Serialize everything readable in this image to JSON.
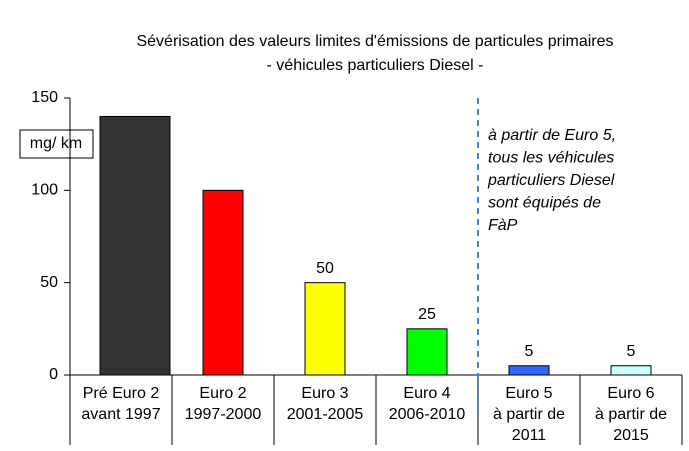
{
  "chart_data": {
    "type": "bar",
    "title": [
      "Sévérisation des valeurs limites d'émissions de particules primaires",
      "-  véhicules particuliers Diesel -"
    ],
    "y_unit": "mg/ km",
    "categories": [
      [
        "Pré Euro 2",
        "avant 1997"
      ],
      [
        "Euro 2",
        "1997-2000"
      ],
      [
        "Euro 3",
        "2001-2005"
      ],
      [
        "Euro 4",
        "2006-2010"
      ],
      [
        "Euro 5",
        "à partir de",
        "2011"
      ],
      [
        "Euro 6",
        "à partir de",
        "2015"
      ]
    ],
    "values": [
      140,
      100,
      50,
      25,
      5,
      5
    ],
    "value_labels": [
      null,
      null,
      "50",
      "25",
      "5",
      "5"
    ],
    "colors": [
      "#333333",
      "#ff0000",
      "#ffff00",
      "#00ff00",
      "#3366ff",
      "#ccffff"
    ],
    "annotation": [
      "à partir de Euro 5,",
      "tous les véhicules",
      "particuliers Diesel",
      "sont équipés de",
      "FàP"
    ],
    "ylim": [
      0,
      150
    ],
    "yticks": [
      0,
      50,
      100,
      150
    ],
    "grid": false
  }
}
